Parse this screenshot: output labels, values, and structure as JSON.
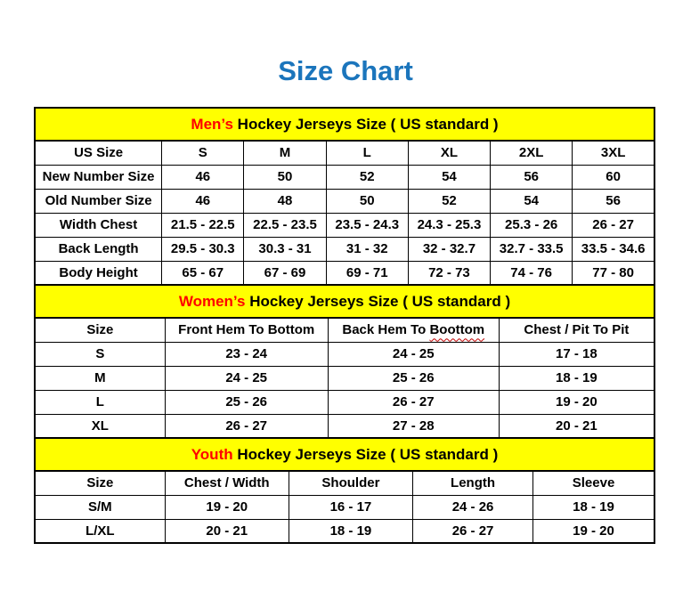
{
  "page": {
    "title": "Size Chart"
  },
  "colors": {
    "title": "#1B75BC",
    "banner_bg": "#FFFF00",
    "banner_highlight": "#FF0000",
    "text": "#000000",
    "border": "#000000",
    "spellcheck_underline": "#C00000"
  },
  "tables": [
    {
      "id": "mens",
      "banner": {
        "highlight": "Men’s",
        "rest": " Hockey Jerseys Size ( US standard )"
      },
      "columns": [
        "US Size",
        "S",
        "M",
        "L",
        "XL",
        "2XL",
        "3XL"
      ],
      "rows": [
        [
          "New Number Size",
          "46",
          "50",
          "52",
          "54",
          "56",
          "60"
        ],
        [
          "Old Number Size",
          "46",
          "48",
          "50",
          "52",
          "54",
          "56"
        ],
        [
          "Width Chest",
          "21.5 - 22.5",
          "22.5 - 23.5",
          "23.5 - 24.3",
          "24.3 - 25.3",
          "25.3 - 26",
          "26 - 27"
        ],
        [
          "Back Length",
          "29.5 - 30.3",
          "30.3 - 31",
          "31 - 32",
          "32 - 32.7",
          "32.7 - 33.5",
          "33.5 - 34.6"
        ],
        [
          "Body Height",
          "65 - 67",
          "67 - 69",
          "69 - 71",
          "72 - 73",
          "74 - 76",
          "77 - 80"
        ]
      ]
    },
    {
      "id": "womens",
      "banner": {
        "highlight": "Women’s",
        "rest": " Hockey Jerseys Size ( US standard )"
      },
      "columns": [
        "Size",
        "Front Hem To Bottom",
        "Back Hem To Boottom",
        "Chest / Pit To Pit"
      ],
      "spellcheck": {
        "col": 2,
        "word": "Boottom"
      },
      "rows": [
        [
          "S",
          "23 - 24",
          "24 - 25",
          "17 - 18"
        ],
        [
          "M",
          "24 - 25",
          "25 - 26",
          "18 - 19"
        ],
        [
          "L",
          "25 - 26",
          "26 - 27",
          "19 - 20"
        ],
        [
          "XL",
          "26 - 27",
          "27 - 28",
          "20 - 21"
        ]
      ]
    },
    {
      "id": "youth",
      "banner": {
        "highlight": "Youth",
        "rest": " Hockey Jerseys Size ( US standard )"
      },
      "columns": [
        "Size",
        "Chest / Width",
        "Shoulder",
        "Length",
        "Sleeve"
      ],
      "rows": [
        [
          "S/M",
          "19 - 20",
          "16 - 17",
          "24 - 26",
          "18 - 19"
        ],
        [
          "L/XL",
          "20 - 21",
          "18 - 19",
          "26 - 27",
          "19 - 20"
        ]
      ]
    }
  ]
}
